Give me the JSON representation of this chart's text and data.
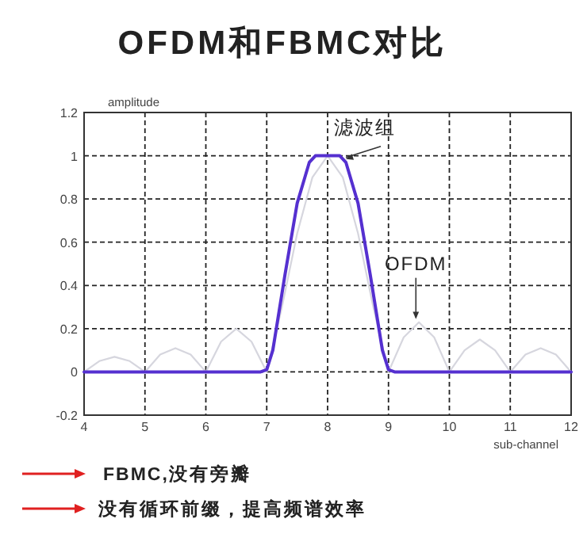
{
  "chart_data": {
    "type": "line",
    "title": "OFDM和FBMC对比",
    "xlabel": "sub-channel",
    "ylabel": "amplitude",
    "xlim": [
      4,
      12
    ],
    "ylim": [
      -0.2,
      1.2
    ],
    "xticks": [
      4,
      5,
      6,
      7,
      8,
      9,
      10,
      11,
      12
    ],
    "yticks": [
      -0.2,
      0,
      0.2,
      0.4,
      0.6,
      0.8,
      1,
      1.2
    ],
    "grid": true,
    "marker": "none",
    "line_style": "solid",
    "series": [
      {
        "color": "#d6d6de",
        "x": [
          4,
          4.25,
          4.5,
          4.75,
          5,
          5.25,
          5.5,
          5.75,
          6,
          6.25,
          6.5,
          6.75,
          7,
          7.25,
          7.5,
          7.75,
          8,
          8.25,
          8.5,
          8.75,
          9,
          9.25,
          9.5,
          9.75,
          10,
          10.25,
          10.5,
          10.75,
          11,
          11.25,
          11.5,
          11.75,
          12
        ],
        "values": [
          0,
          0.05,
          0.07,
          0.05,
          0,
          0.08,
          0.11,
          0.08,
          0,
          0.14,
          0.2,
          0.14,
          0,
          0.3,
          0.64,
          0.9,
          1,
          0.9,
          0.64,
          0.3,
          0,
          0.16,
          0.23,
          0.16,
          0,
          0.1,
          0.15,
          0.1,
          0,
          0.08,
          0.11,
          0.08,
          0
        ]
      },
      {
        "color": "#5530d0",
        "x": [
          4,
          6.9,
          7,
          7.1,
          7.3,
          7.5,
          7.7,
          7.8,
          8.2,
          8.3,
          8.5,
          8.7,
          8.9,
          9,
          9.1,
          12
        ],
        "values": [
          0,
          0,
          0.01,
          0.1,
          0.45,
          0.78,
          0.97,
          1,
          1,
          0.97,
          0.78,
          0.45,
          0.1,
          0.01,
          0,
          0
        ]
      }
    ],
    "annotations": [
      {
        "text": "滤波组",
        "x": 8.3,
        "y": 0.97
      },
      {
        "text": "OFDM",
        "x": 9.45,
        "y": 0.23
      },
      "FBMC,没有旁瓣",
      "没有循环前缀，提高频谱效率"
    ]
  }
}
